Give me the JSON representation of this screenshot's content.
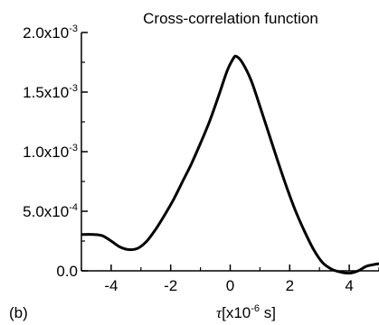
{
  "chart_data": {
    "type": "line",
    "title": "Cross-correlation function",
    "panel_label": "(b)",
    "xlabel": {
      "symbol": "τ",
      "prefix": "[x10",
      "exponent": "-6",
      "suffix": " s]"
    },
    "ylabel": "",
    "xlim": [
      -5,
      5
    ],
    "ylim": [
      0,
      0.002
    ],
    "x_ticks": [
      {
        "value": -4,
        "label": "-4"
      },
      {
        "value": -2,
        "label": "-2"
      },
      {
        "value": 0,
        "label": "0"
      },
      {
        "value": 2,
        "label": "2"
      },
      {
        "value": 4,
        "label": "4"
      }
    ],
    "y_ticks": [
      {
        "value": 0.0,
        "mantissa": "0.0",
        "exponent": ""
      },
      {
        "value": 0.0005,
        "mantissa": "5.0x10",
        "exponent": "-4"
      },
      {
        "value": 0.001,
        "mantissa": "1.0x10",
        "exponent": "-3"
      },
      {
        "value": 0.0015,
        "mantissa": "1.5x10",
        "exponent": "-3"
      },
      {
        "value": 0.002,
        "mantissa": "2.0x10",
        "exponent": "-3"
      }
    ],
    "grid": false,
    "series": [
      {
        "color": "#000000",
        "x": [
          -5.0,
          -4.6,
          -4.3,
          -4.0,
          -3.7,
          -3.4,
          -3.1,
          -2.8,
          -2.5,
          -2.2,
          -1.9,
          -1.6,
          -1.3,
          -1.0,
          -0.7,
          -0.4,
          -0.1,
          0.1,
          0.2,
          0.4,
          0.7,
          1.0,
          1.3,
          1.6,
          1.9,
          2.2,
          2.5,
          2.8,
          3.1,
          3.4,
          3.7,
          4.0,
          4.3,
          4.6,
          5.0
        ],
        "y": [
          0.000305,
          0.000305,
          0.000295,
          0.00025,
          0.0002,
          0.000178,
          0.00019,
          0.00025,
          0.00035,
          0.00047,
          0.0006,
          0.00075,
          0.0009,
          0.00107,
          0.00125,
          0.00146,
          0.00168,
          0.00178,
          0.0018,
          0.00175,
          0.0016,
          0.00138,
          0.00115,
          0.00092,
          0.0007,
          0.0005,
          0.00033,
          0.00018,
          7e-05,
          1.5e-05,
          -1e-05,
          -2e-05,
          0.0,
          4e-05,
          6e-05
        ]
      }
    ]
  }
}
